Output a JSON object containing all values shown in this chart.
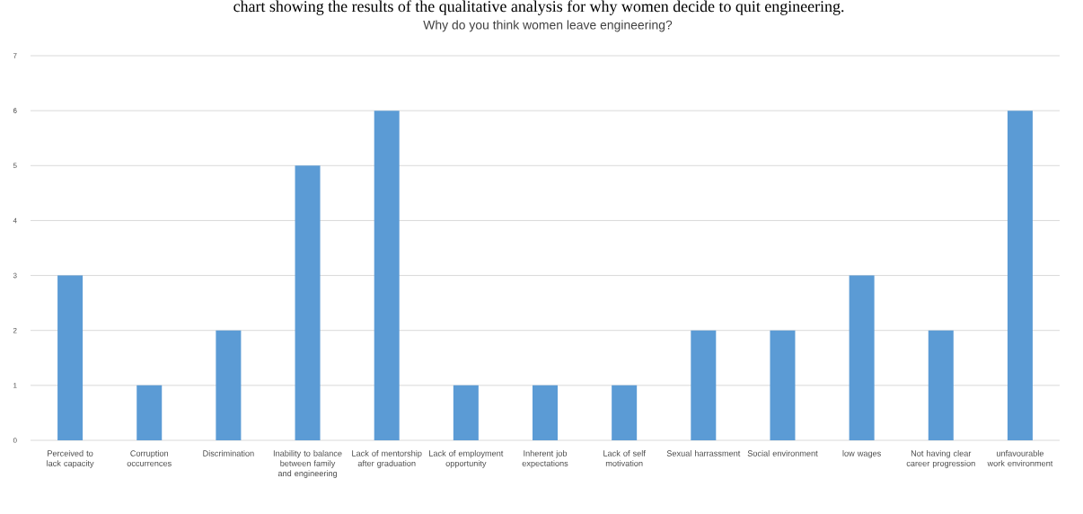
{
  "chart_data": {
    "type": "bar",
    "title": "Why do you think women leave engineering?",
    "annotations": [
      "chart showing the results of the qualitative analysis for why women decide to quit engineering."
    ],
    "categories": [
      "Perceived to lack capacity",
      "Corruption occurrences",
      "Discrimination",
      "Inability to balance between family and engineering",
      "Lack of mentorship after graduation",
      "Lack of employment opportunity",
      "Inherent job expectations",
      "Lack of self motivation",
      "Sexual harrassment",
      "Social environment",
      "low wages",
      "Not having clear career progression",
      "unfavourable work environment"
    ],
    "values": [
      3,
      1,
      2,
      5,
      6,
      1,
      1,
      1,
      2,
      2,
      3,
      2,
      6
    ],
    "color": "#5b9bd5",
    "ylim": [
      0,
      7
    ],
    "yticks": [
      0,
      1,
      2,
      3,
      4,
      5,
      6,
      7
    ],
    "grid": "y"
  }
}
